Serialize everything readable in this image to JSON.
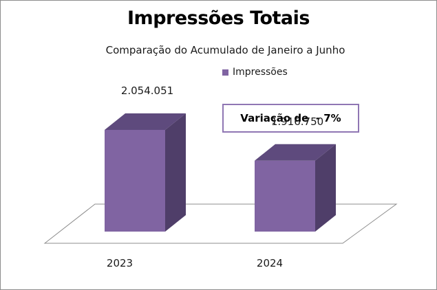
{
  "chart_data": {
    "type": "bar",
    "title": "Impressões Totais",
    "subtitle": "Comparação do Acumulado de Janeiro a Junho",
    "categories": [
      "2023",
      "2024"
    ],
    "series": [
      {
        "name": "Impressões",
        "values": [
          2054051,
          1916750
        ],
        "color": "#8064a2"
      }
    ],
    "value_labels": [
      "2.054.051",
      "1.916.750"
    ],
    "annotation": "Variação de  - 7%",
    "legend_position": "top-right",
    "three_d": true,
    "grid": false
  }
}
